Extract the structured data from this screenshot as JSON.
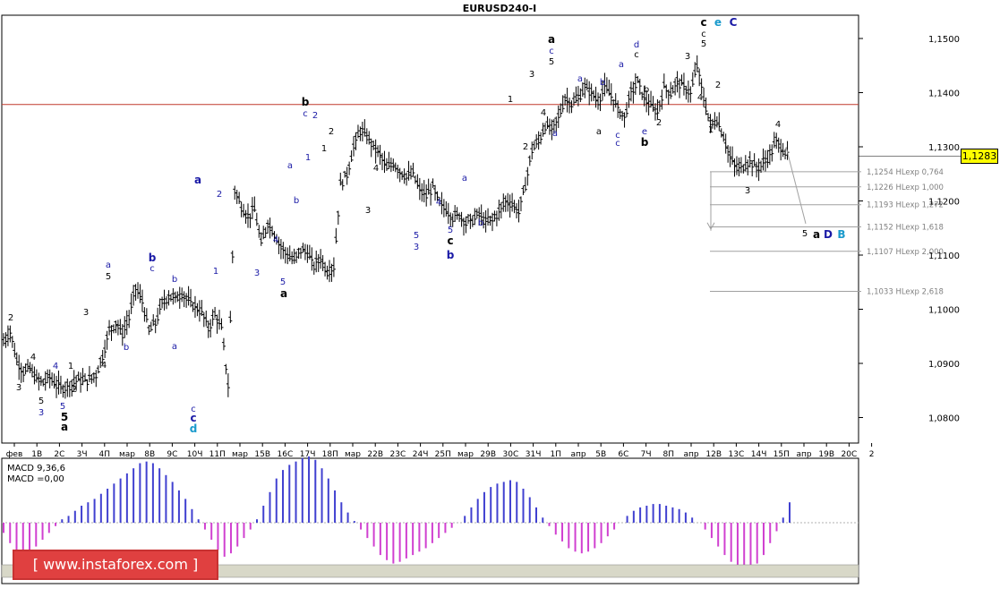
{
  "chart_data": {
    "type": "line",
    "title": "EURUSD240-I",
    "y_ticks": [
      "1,1500",
      "1,1400",
      "1,1300",
      "1,1200",
      "1,1100",
      "1,1000",
      "1,0900",
      "1,0800"
    ],
    "y_tick_values": [
      1.15,
      1.14,
      1.13,
      1.12,
      1.11,
      1.1,
      1.09,
      1.08
    ],
    "ylim": [
      1.072,
      1.156
    ],
    "x_tick_labels": [
      "фев",
      "1В",
      "2С",
      "3Ч",
      "4П",
      "мар",
      "8В",
      "9С",
      "10Ч",
      "11П",
      "мар",
      "15В",
      "16С",
      "17Ч",
      "18П",
      "мар",
      "22В",
      "23С",
      "24Ч",
      "25П",
      "мар",
      "29В",
      "30С",
      "31Ч",
      "1П",
      "апр",
      "5В",
      "6С",
      "7Ч",
      "8П",
      "апр",
      "12В",
      "13С",
      "14Ч",
      "15П",
      "апр",
      "19В",
      "20С",
      "2"
    ],
    "current_price": "1,1283",
    "current_price_value": 1.1283,
    "resistance_level": 1.1378,
    "price_path": [
      1.094,
      1.096,
      1.0905,
      1.0885,
      1.089,
      1.087,
      1.0865,
      1.0875,
      1.086,
      1.0855,
      1.086,
      1.087,
      1.0868,
      1.087,
      1.088,
      1.0915,
      1.096,
      1.0975,
      1.0955,
      1.0985,
      1.104,
      1.1015,
      1.096,
      1.0975,
      1.101,
      1.1025,
      1.102,
      1.103,
      1.1015,
      1.1005,
      1.0995,
      1.0965,
      1.099,
      1.0965,
      1.086,
      1.122,
      1.119,
      1.117,
      1.1185,
      1.112,
      1.116,
      1.114,
      1.1115,
      1.11,
      1.109,
      1.111,
      1.1105,
      1.108,
      1.1095,
      1.107,
      1.108,
      1.123,
      1.125,
      1.13,
      1.133,
      1.132,
      1.13,
      1.1285,
      1.126,
      1.127,
      1.1255,
      1.1245,
      1.125,
      1.122,
      1.121,
      1.1225,
      1.1195,
      1.1185,
      1.117,
      1.1175,
      1.116,
      1.1165,
      1.1175,
      1.116,
      1.1165,
      1.118,
      1.12,
      1.1195,
      1.118,
      1.123,
      1.1295,
      1.131,
      1.134,
      1.133,
      1.1355,
      1.139,
      1.138,
      1.139,
      1.141,
      1.14,
      1.1385,
      1.141,
      1.1395,
      1.137,
      1.1355,
      1.14,
      1.142,
      1.139,
      1.1375,
      1.1365,
      1.141,
      1.14,
      1.142,
      1.141,
      1.14,
      1.145,
      1.139,
      1.134,
      1.135,
      1.132,
      1.128,
      1.126,
      1.1265,
      1.1275,
      1.126,
      1.127,
      1.1285,
      1.131,
      1.1295,
      1.1283
    ],
    "fib_levels": [
      {
        "value": 1.1254,
        "label": "1,1254 HLexp 0,764"
      },
      {
        "value": 1.1226,
        "label": "1,1226 HLexp 1,000"
      },
      {
        "value": 1.1193,
        "label": "1,1193 HLexp 1,272"
      },
      {
        "value": 1.1152,
        "label": "1,1152 HLexp 1,618"
      },
      {
        "value": 1.1107,
        "label": "1,1107 HLexp 2,000"
      },
      {
        "value": 1.1033,
        "label": "1,1033 HLexp 2,618"
      }
    ],
    "wave_labels": [
      {
        "t": "2",
        "x": 12,
        "y": 358,
        "c": "#000000",
        "b": false
      },
      {
        "t": "4",
        "x": 37,
        "y": 402,
        "c": "#000000",
        "b": false
      },
      {
        "t": "3",
        "x": 21,
        "y": 436,
        "c": "#000000",
        "b": false
      },
      {
        "t": "4",
        "x": 62,
        "y": 412,
        "c": "#1a1aa6",
        "b": false
      },
      {
        "t": "5",
        "x": 46,
        "y": 451,
        "c": "#000000",
        "b": false
      },
      {
        "t": "3",
        "x": 46,
        "y": 464,
        "c": "#1a1aa6",
        "b": false
      },
      {
        "t": "5",
        "x": 70,
        "y": 457,
        "c": "#1a1aa6",
        "b": false
      },
      {
        "t": "5",
        "x": 72,
        "y": 470,
        "c": "#000000",
        "b": true
      },
      {
        "t": "a",
        "x": 72,
        "y": 481,
        "c": "#000000",
        "b": true
      },
      {
        "t": "1",
        "x": 79,
        "y": 412,
        "c": "#000000",
        "b": false
      },
      {
        "t": "2",
        "x": 83,
        "y": 438,
        "c": "#000000",
        "b": false
      },
      {
        "t": "3",
        "x": 96,
        "y": 352,
        "c": "#000000",
        "b": false
      },
      {
        "t": "4",
        "x": 116,
        "y": 411,
        "c": "#000000",
        "b": false
      },
      {
        "t": "a",
        "x": 121,
        "y": 299,
        "c": "#1a1aa6",
        "b": false
      },
      {
        "t": "5",
        "x": 121,
        "y": 312,
        "c": "#000000",
        "b": false
      },
      {
        "t": "b",
        "x": 141,
        "y": 391,
        "c": "#1a1aa6",
        "b": false
      },
      {
        "t": "b",
        "x": 170,
        "y": 292,
        "c": "#1a1aa6",
        "b": true
      },
      {
        "t": "c",
        "x": 170,
        "y": 303,
        "c": "#1a1aa6",
        "b": false
      },
      {
        "t": "b",
        "x": 195,
        "y": 315,
        "c": "#1a1aa6",
        "b": false
      },
      {
        "t": "a",
        "x": 195,
        "y": 390,
        "c": "#1a1aa6",
        "b": false
      },
      {
        "t": "c",
        "x": 216,
        "y": 460,
        "c": "#1a1aa6",
        "b": false
      },
      {
        "t": "c",
        "x": 216,
        "y": 471,
        "c": "#1a1aa6",
        "b": true
      },
      {
        "t": "d",
        "x": 216,
        "y": 483,
        "c": "#1a9acc",
        "b": true
      },
      {
        "t": "a",
        "x": 221,
        "y": 205,
        "c": "#1a1aa6",
        "b": true
      },
      {
        "t": "2",
        "x": 245,
        "y": 220,
        "c": "#1a1aa6",
        "b": false
      },
      {
        "t": "1",
        "x": 241,
        "y": 306,
        "c": "#1a1aa6",
        "b": false
      },
      {
        "t": "3",
        "x": 287,
        "y": 308,
        "c": "#1a1aa6",
        "b": false
      },
      {
        "t": "4",
        "x": 308,
        "y": 271,
        "c": "#1a1aa6",
        "b": false
      },
      {
        "t": "5",
        "x": 316,
        "y": 318,
        "c": "#1a1aa6",
        "b": false
      },
      {
        "t": "a",
        "x": 317,
        "y": 332,
        "c": "#000000",
        "b": true
      },
      {
        "t": "a",
        "x": 324,
        "y": 188,
        "c": "#1a1aa6",
        "b": false
      },
      {
        "t": "b",
        "x": 331,
        "y": 227,
        "c": "#1a1aa6",
        "b": false
      },
      {
        "t": "b",
        "x": 341,
        "y": 118,
        "c": "#000000",
        "b": true
      },
      {
        "t": "c",
        "x": 341,
        "y": 130,
        "c": "#1a1aa6",
        "b": false
      },
      {
        "t": "2",
        "x": 352,
        "y": 132,
        "c": "#1a1aa6",
        "b": false
      },
      {
        "t": "1",
        "x": 344,
        "y": 179,
        "c": "#1a1aa6",
        "b": false
      },
      {
        "t": "2",
        "x": 370,
        "y": 150,
        "c": "#000000",
        "b": false
      },
      {
        "t": "1",
        "x": 362,
        "y": 169,
        "c": "#000000",
        "b": false
      },
      {
        "t": "4",
        "x": 420,
        "y": 191,
        "c": "#000000",
        "b": false
      },
      {
        "t": "3",
        "x": 411,
        "y": 238,
        "c": "#000000",
        "b": false
      },
      {
        "t": "4",
        "x": 490,
        "y": 229,
        "c": "#1a1aa6",
        "b": false
      },
      {
        "t": "5",
        "x": 465,
        "y": 266,
        "c": "#1a1aa6",
        "b": false
      },
      {
        "t": "3",
        "x": 465,
        "y": 279,
        "c": "#1a1aa6",
        "b": false
      },
      {
        "t": "5",
        "x": 503,
        "y": 260,
        "c": "#1a1aa6",
        "b": false
      },
      {
        "t": "c",
        "x": 503,
        "y": 273,
        "c": "#000000",
        "b": true
      },
      {
        "t": "b",
        "x": 503,
        "y": 289,
        "c": "#1a1aa6",
        "b": true
      },
      {
        "t": "a",
        "x": 519,
        "y": 202,
        "c": "#1a1aa6",
        "b": false
      },
      {
        "t": "b",
        "x": 537,
        "y": 252,
        "c": "#1a1aa6",
        "b": false
      },
      {
        "t": "1",
        "x": 570,
        "y": 114,
        "c": "#000000",
        "b": false
      },
      {
        "t": "2",
        "x": 587,
        "y": 167,
        "c": "#000000",
        "b": false
      },
      {
        "t": "3",
        "x": 594,
        "y": 86,
        "c": "#000000",
        "b": false
      },
      {
        "t": "4",
        "x": 607,
        "y": 129,
        "c": "#000000",
        "b": false
      },
      {
        "t": "a",
        "x": 616,
        "y": 48,
        "c": "#000000",
        "b": true
      },
      {
        "t": "c",
        "x": 616,
        "y": 60,
        "c": "#1a1aa6",
        "b": false
      },
      {
        "t": "5",
        "x": 616,
        "y": 72,
        "c": "#000000",
        "b": false
      },
      {
        "t": "a",
        "x": 620,
        "y": 152,
        "c": "#1a1aa6",
        "b": false
      },
      {
        "t": "a",
        "x": 648,
        "y": 91,
        "c": "#1a1aa6",
        "b": false
      },
      {
        "t": "b",
        "x": 673,
        "y": 95,
        "c": "#1a1aa6",
        "b": false
      },
      {
        "t": "a",
        "x": 669,
        "y": 150,
        "c": "#000000",
        "b": false
      },
      {
        "t": "c",
        "x": 690,
        "y": 154,
        "c": "#1a1aa6",
        "b": false
      },
      {
        "t": "c",
        "x": 690,
        "y": 163,
        "c": "#1a1aa6",
        "b": false
      },
      {
        "t": "a",
        "x": 694,
        "y": 75,
        "c": "#1a1aa6",
        "b": false
      },
      {
        "t": "d",
        "x": 711,
        "y": 53,
        "c": "#1a1aa6",
        "b": false
      },
      {
        "t": "c",
        "x": 711,
        "y": 64,
        "c": "#000000",
        "b": false
      },
      {
        "t": "b",
        "x": 722,
        "y": 103,
        "c": "#000000",
        "b": false
      },
      {
        "t": "e",
        "x": 720,
        "y": 150,
        "c": "#1a1aa6",
        "b": false
      },
      {
        "t": "b",
        "x": 720,
        "y": 163,
        "c": "#000000",
        "b": true
      },
      {
        "t": "2",
        "x": 736,
        "y": 140,
        "c": "#000000",
        "b": false
      },
      {
        "t": "3",
        "x": 768,
        "y": 66,
        "c": "#000000",
        "b": false
      },
      {
        "t": "4",
        "x": 782,
        "y": 112,
        "c": "#000000",
        "b": false
      },
      {
        "t": "c",
        "x": 786,
        "y": 29,
        "c": "#000000",
        "b": true
      },
      {
        "t": "c",
        "x": 786,
        "y": 41,
        "c": "#000000",
        "b": false
      },
      {
        "t": "5",
        "x": 786,
        "y": 52,
        "c": "#000000",
        "b": false
      },
      {
        "t": "e",
        "x": 802,
        "y": 29,
        "c": "#1a9acc",
        "b": true
      },
      {
        "t": "C",
        "x": 819,
        "y": 29,
        "c": "#1a1aa6",
        "b": true
      },
      {
        "t": "2",
        "x": 802,
        "y": 98,
        "c": "#000000",
        "b": false
      },
      {
        "t": "1",
        "x": 794,
        "y": 148,
        "c": "#000000",
        "b": false
      },
      {
        "t": "3",
        "x": 835,
        "y": 216,
        "c": "#000000",
        "b": false
      },
      {
        "t": "4",
        "x": 869,
        "y": 142,
        "c": "#000000",
        "b": false
      },
      {
        "t": "5",
        "x": 899,
        "y": 264,
        "c": "#000000",
        "b": false
      },
      {
        "t": "a",
        "x": 912,
        "y": 266,
        "c": "#000000",
        "b": true
      },
      {
        "t": "D",
        "x": 925,
        "y": 266,
        "c": "#1a1aa6",
        "b": true
      },
      {
        "t": "B",
        "x": 940,
        "y": 266,
        "c": "#1a9acc",
        "b": true
      }
    ],
    "macd": {
      "label1": "MACD 9,36,6",
      "label2": "MACD =0,00",
      "values": [
        -0.3,
        -0.6,
        -0.8,
        -0.9,
        -0.85,
        -0.7,
        -0.5,
        -0.3,
        -0.1,
        0.1,
        0.2,
        0.35,
        0.5,
        0.6,
        0.7,
        0.85,
        1.0,
        1.15,
        1.3,
        1.45,
        1.6,
        1.75,
        1.8,
        1.75,
        1.6,
        1.4,
        1.2,
        0.95,
        0.7,
        0.4,
        0.1,
        -0.2,
        -0.5,
        -0.8,
        -1.0,
        -0.9,
        -0.7,
        -0.45,
        -0.2,
        0.1,
        0.5,
        0.9,
        1.3,
        1.55,
        1.7,
        1.8,
        1.9,
        1.95,
        1.85,
        1.6,
        1.3,
        0.95,
        0.6,
        0.3,
        0.05,
        -0.2,
        -0.45,
        -0.7,
        -0.95,
        -1.1,
        -1.2,
        -1.15,
        -1.05,
        -0.95,
        -0.85,
        -0.75,
        -0.6,
        -0.45,
        -0.3,
        -0.15,
        0.0,
        0.2,
        0.45,
        0.7,
        0.9,
        1.05,
        1.15,
        1.2,
        1.25,
        1.2,
        1.0,
        0.75,
        0.45,
        0.15,
        -0.1,
        -0.35,
        -0.55,
        -0.75,
        -0.85,
        -0.9,
        -0.85,
        -0.75,
        -0.6,
        -0.4,
        -0.2,
        0.0,
        0.2,
        0.35,
        0.45,
        0.5,
        0.55,
        0.55,
        0.5,
        0.45,
        0.4,
        0.3,
        0.15,
        0.0,
        -0.2,
        -0.45,
        -0.7,
        -0.95,
        -1.15,
        -1.3,
        -1.4,
        -1.35,
        -1.2,
        -0.95,
        -0.6,
        -0.25,
        0.15,
        0.6
      ]
    }
  },
  "watermark": "[ www.instaforex.com ]",
  "colors": {
    "candle": "#000000",
    "resistance": "#c0392b",
    "fib": "#a0a0a0",
    "macd_positive": "#4040d0",
    "macd_negative": "#d040d0",
    "price_tag_bg": "#ffff00"
  }
}
